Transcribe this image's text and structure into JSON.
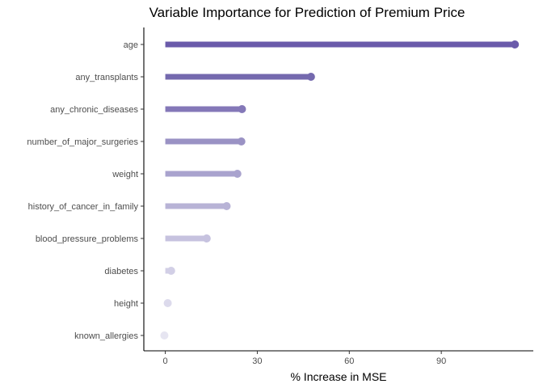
{
  "chart_data": {
    "type": "lollipop",
    "title": "Variable Importance for Prediction of Premium Price",
    "xlabel": "% Increase in MSE",
    "ylabel": "",
    "xlim": [
      -7,
      120
    ],
    "xticks": [
      0,
      30,
      60,
      90
    ],
    "categories": [
      "age",
      "any_transplants",
      "any_chronic_diseases",
      "number_of_major_surgeries",
      "weight",
      "history_of_cancer_in_family",
      "blood_pressure_problems",
      "diabetes",
      "height",
      "known_allergies"
    ],
    "values": [
      114,
      47.5,
      25,
      24.8,
      23.5,
      20,
      13.5,
      1.9,
      0.8,
      -0.3
    ],
    "colors": [
      "#6a5aaa",
      "#7469ae",
      "#8478b8",
      "#9a92c4",
      "#a9a3ce",
      "#b8b3d6",
      "#c6c2df",
      "#d2cfe6",
      "#dcdaec",
      "#e6e5f1"
    ],
    "grid": false,
    "legend": "none"
  }
}
